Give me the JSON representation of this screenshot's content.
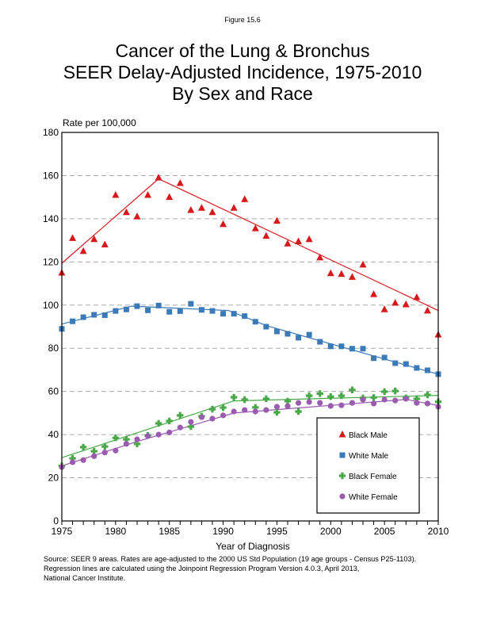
{
  "figure_label": "Figure 15.6",
  "title_lines": [
    "Cancer of the Lung & Bronchus",
    "SEER Delay-Adjusted Incidence, 1975-2010",
    "By Sex and Race"
  ],
  "source_lines": [
    "Source: SEER 9 areas. Rates are age-adjusted to the 2000 US Std Population (19 age groups - Census P25-1103).",
    "Regression lines are calculated using the Joinpoint Regression Program Version 4.0.3, April 2013,",
    "National Cancer Institute."
  ],
  "chart_data": {
    "type": "scatter",
    "title": "Cancer of the Lung & Bronchus SEER Delay-Adjusted Incidence, 1975-2010 By Sex and Race",
    "xlabel": "Year of Diagnosis",
    "ylabel": "Rate per 100,000",
    "xlim": [
      1975,
      2010
    ],
    "ylim": [
      0,
      180
    ],
    "x_ticks": [
      1975,
      1980,
      1985,
      1990,
      1995,
      2000,
      2005,
      2010
    ],
    "y_ticks": [
      0,
      20,
      40,
      60,
      80,
      100,
      120,
      140,
      160,
      180
    ],
    "grid": "horizontal dashed",
    "legend_position": "bottom-right",
    "x": [
      1975,
      1976,
      1977,
      1978,
      1979,
      1980,
      1981,
      1982,
      1983,
      1984,
      1985,
      1986,
      1987,
      1988,
      1989,
      1990,
      1991,
      1992,
      1993,
      1994,
      1995,
      1996,
      1997,
      1998,
      1999,
      2000,
      2001,
      2002,
      2003,
      2004,
      2005,
      2006,
      2007,
      2008,
      2009,
      2010
    ],
    "series": [
      {
        "name": "Black Male",
        "marker": "triangle",
        "color": "#d7191c",
        "values": [
          115,
          131,
          125,
          130.5,
          128,
          151,
          143,
          141,
          151,
          159,
          150,
          156.5,
          144,
          145,
          143,
          137.5,
          145,
          149,
          135.5,
          132,
          139,
          128.5,
          129.5,
          130.5,
          122,
          114.7,
          114.4,
          113,
          118.7,
          105,
          98,
          101,
          100.3,
          103.6,
          97.4,
          86.3
        ],
        "regression": [
          [
            1975,
            119.4
          ],
          [
            1984,
            158.5
          ],
          [
            2010,
            97.5
          ]
        ]
      },
      {
        "name": "White Male",
        "marker": "square",
        "color": "#3b7ab8",
        "values": [
          89,
          92.5,
          94.4,
          95.5,
          95.3,
          97.3,
          98,
          99.5,
          97.6,
          99.8,
          96.9,
          97.2,
          100.6,
          97.8,
          97.3,
          96,
          96,
          94.9,
          92.3,
          90,
          87.8,
          86.7,
          84.9,
          86.3,
          83,
          80.9,
          80.9,
          79.8,
          79.8,
          75.4,
          75.7,
          73.1,
          72.7,
          70.9,
          69.8,
          68
        ],
        "regression": [
          [
            1975,
            91.2
          ],
          [
            1981.5,
            99.5
          ],
          [
            1990.5,
            97.5
          ],
          [
            1994,
            90.5
          ],
          [
            2010,
            68
          ]
        ]
      },
      {
        "name": "Black Female",
        "marker": "plus",
        "color": "#4aa84a",
        "values": [
          25.5,
          29,
          34.2,
          32.3,
          34.5,
          38.5,
          37.8,
          35.7,
          39.6,
          45.2,
          46.3,
          48.9,
          43.7,
          48.5,
          51.8,
          52.5,
          57.3,
          56.2,
          52.6,
          56.6,
          50.3,
          55.5,
          50.7,
          58,
          59,
          57.6,
          58,
          60.7,
          57,
          57.2,
          59.9,
          60.2,
          57,
          56.6,
          58.4,
          55.2
        ],
        "regression": [
          [
            1975,
            29.3
          ],
          [
            1991,
            55.6
          ],
          [
            2010,
            58.2
          ]
        ]
      },
      {
        "name": "White Female",
        "marker": "circle",
        "color": "#9a5bb0",
        "values": [
          25,
          27.2,
          28.2,
          30,
          31.7,
          32.6,
          35.7,
          37.8,
          39.3,
          40,
          41,
          43.3,
          45.9,
          48.1,
          47.4,
          48.9,
          50.7,
          51.4,
          50.7,
          51.4,
          52.9,
          53.2,
          54.7,
          55.1,
          54.7,
          53.3,
          53.6,
          54.7,
          56.2,
          54.4,
          56.2,
          55.8,
          56.6,
          54.7,
          54.4,
          52.9
        ],
        "regression": [
          [
            1975,
            25.5
          ],
          [
            1982,
            36.8
          ],
          [
            1991,
            50
          ],
          [
            2007,
            56.3
          ],
          [
            2010,
            53.5
          ]
        ]
      }
    ]
  }
}
